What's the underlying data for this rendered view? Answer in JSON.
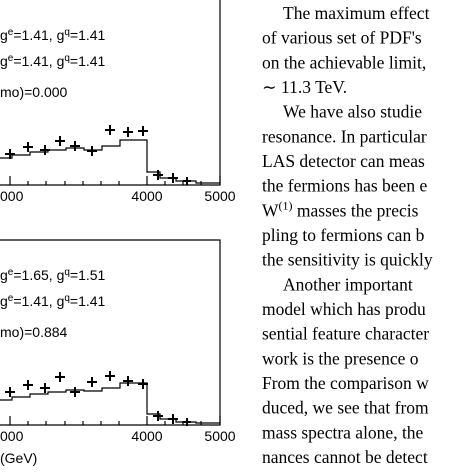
{
  "figure": {
    "panels": [
      {
        "legend": [
          [
            "g",
            "e",
            "=1.41, g",
            "q",
            "=1.41"
          ],
          [
            "g",
            "e",
            "=1.41, g",
            "q",
            "=1.41"
          ],
          [
            "mo)=0.000"
          ]
        ],
        "ticks": [
          "000",
          "4000",
          "5000"
        ]
      },
      {
        "legend": [
          [
            "g",
            "e",
            "=1.65, g",
            "q",
            "=1.51"
          ],
          [
            "g",
            "e",
            "=1.41, g",
            "q",
            "=1.41"
          ],
          [
            "mo)=0.884"
          ]
        ],
        "ticks": [
          "000",
          "4000",
          "5000"
        ],
        "xlabel": "(GeV)"
      }
    ]
  },
  "text": {
    "lines": [
      {
        "indent": true,
        "parts": [
          "The maximum effect"
        ]
      },
      {
        "indent": false,
        "parts": [
          "of various set of PDF's"
        ]
      },
      {
        "indent": false,
        "parts": [
          "on the achievable limit,"
        ]
      },
      {
        "indent": false,
        "parts": [
          "∼ 11.3 TeV."
        ]
      },
      {
        "indent": true,
        "parts": [
          "We have also studie"
        ]
      },
      {
        "indent": false,
        "parts": [
          "resonance. In particular"
        ]
      },
      {
        "indent": false,
        "parts": [
          "LAS detector can meas"
        ]
      },
      {
        "indent": false,
        "parts": [
          "the fermions has been e"
        ]
      },
      {
        "indent": false,
        "parts": [
          "W",
          "(1)",
          " masses the precis"
        ]
      },
      {
        "indent": false,
        "parts": [
          "pling to fermions can b"
        ]
      },
      {
        "indent": false,
        "parts": [
          "the sensitivity is quickly"
        ]
      },
      {
        "indent": true,
        "parts": [
          "Another important"
        ]
      },
      {
        "indent": false,
        "parts": [
          "model which has produ"
        ]
      },
      {
        "indent": false,
        "parts": [
          "sential feature character"
        ]
      },
      {
        "indent": false,
        "parts": [
          "work is the presence o"
        ]
      },
      {
        "indent": false,
        "parts": [
          "From the comparison w"
        ]
      },
      {
        "indent": false,
        "parts": [
          "duced, we see that from"
        ]
      },
      {
        "indent": false,
        "parts": [
          "mass spectra alone, the"
        ]
      },
      {
        "indent": false,
        "parts": [
          "nances cannot be detect"
        ]
      }
    ]
  }
}
